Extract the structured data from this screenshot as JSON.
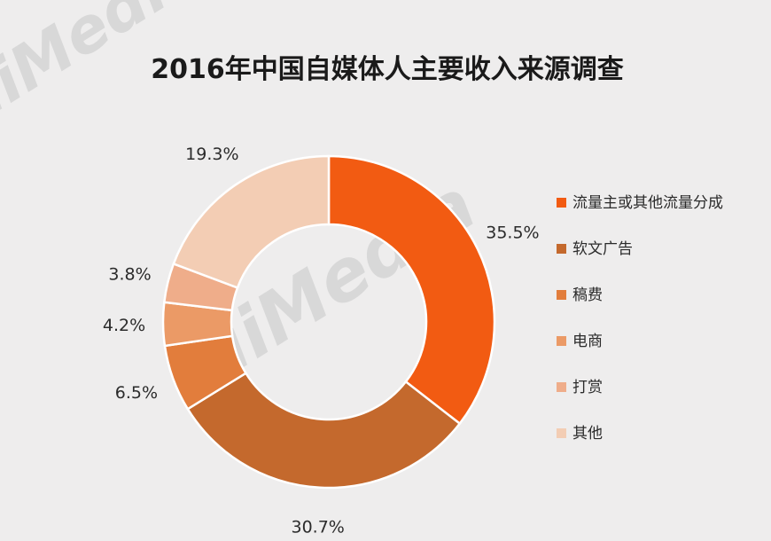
{
  "chart_data": {
    "type": "pie",
    "variant": "donut",
    "title": "2016年中国自媒体人主要收入来源调查",
    "unit": "%",
    "legend_position": "right",
    "series": [
      {
        "name": "流量主或其他流量分成",
        "value": 35.5,
        "label": "35.5%",
        "color": "#f25b12"
      },
      {
        "name": "软文广告",
        "value": 30.7,
        "label": "30.7%",
        "color": "#c4692d"
      },
      {
        "name": "稿费",
        "value": 6.5,
        "label": "6.5%",
        "color": "#e27d3c"
      },
      {
        "name": "电商",
        "value": 4.2,
        "label": "4.2%",
        "color": "#eb9a66"
      },
      {
        "name": "打赏",
        "value": 3.8,
        "label": "3.8%",
        "color": "#efad8a"
      },
      {
        "name": "其他",
        "value": 19.3,
        "label": "19.3%",
        "color": "#f3cdb4"
      }
    ]
  },
  "watermark": {
    "text": "iiMedia"
  }
}
